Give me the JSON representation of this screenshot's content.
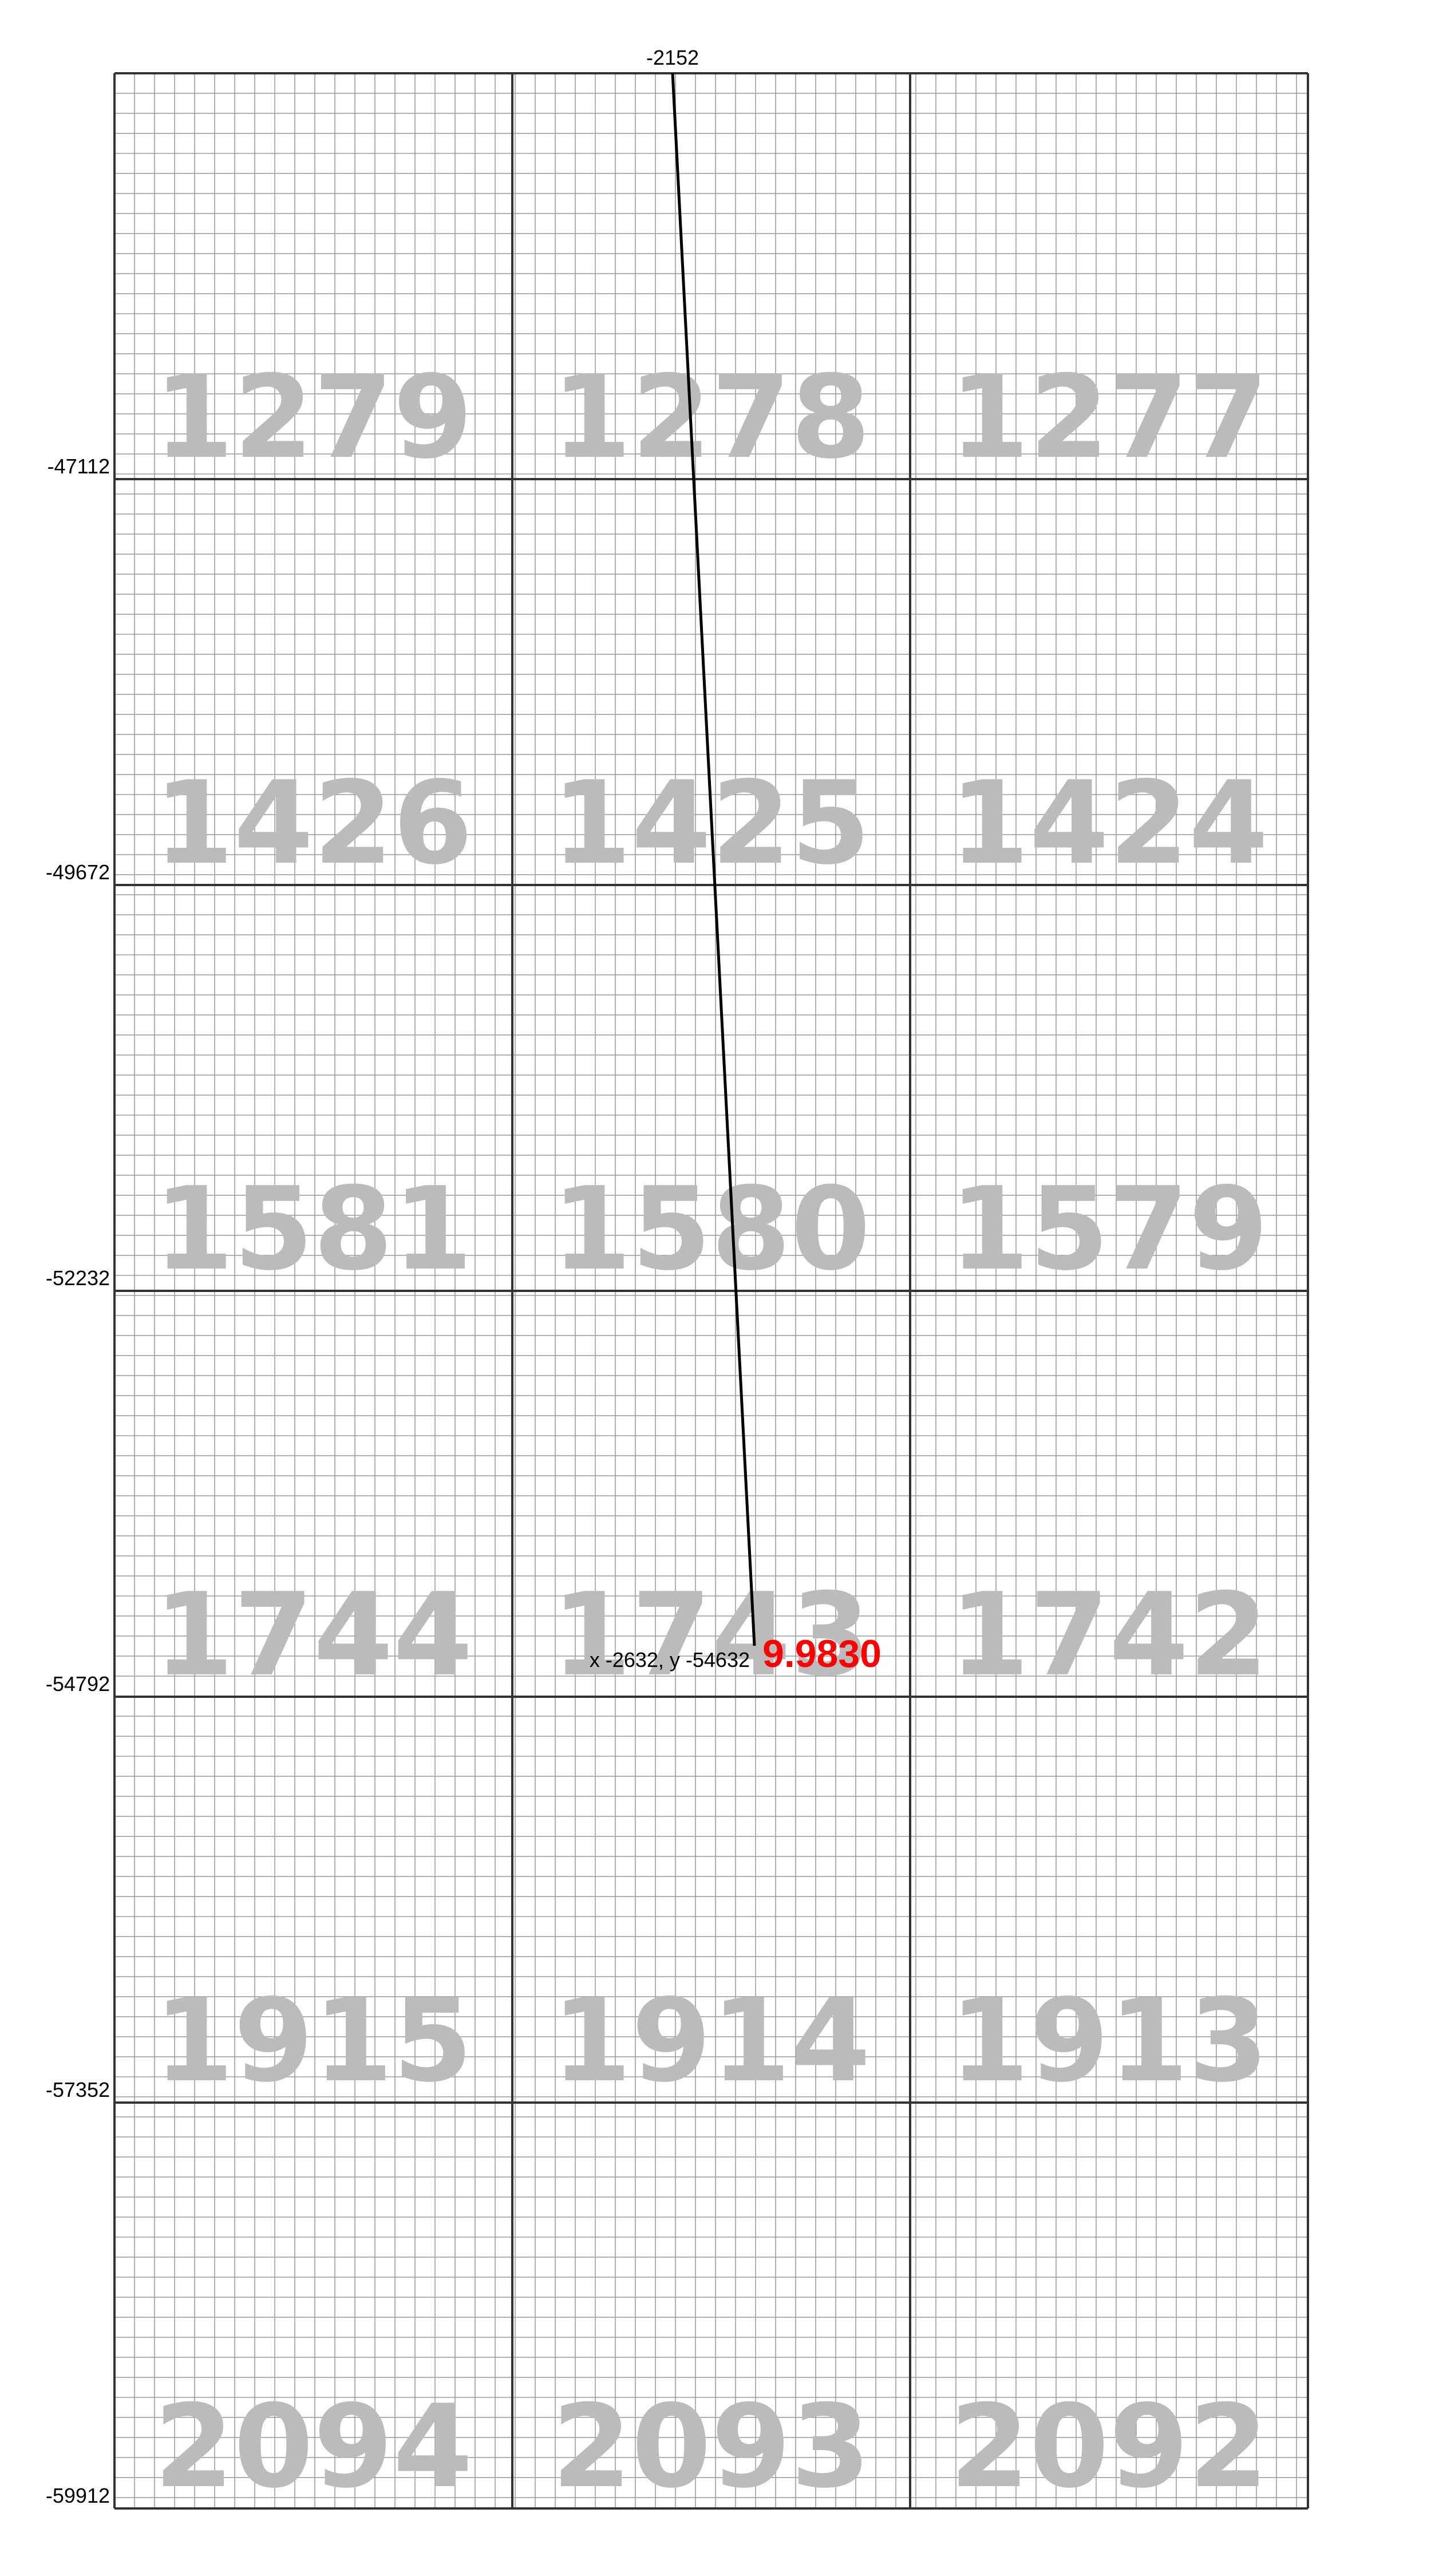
{
  "top_label": "-2152",
  "row_labels": [
    "-47112",
    "-49672",
    "-52232",
    "-54792",
    "-57352",
    "-59912"
  ],
  "tiles": [
    [
      "1279",
      "1278",
      "1277"
    ],
    [
      "1426",
      "1425",
      "1424"
    ],
    [
      "1581",
      "1580",
      "1579"
    ],
    [
      "1744",
      "1743",
      "1742"
    ],
    [
      "1915",
      "1914",
      "1913"
    ],
    [
      "2094",
      "2093",
      "2092"
    ]
  ],
  "position_label": "x -2632, y -54632",
  "distance_label": "9.9830",
  "colors": {
    "background": "#ffffff",
    "fine_grid": "#999999",
    "major_grid": "#333333",
    "tile_number": "#bbbbbb",
    "route_line": "#000000",
    "distance_text": "#ff0000"
  }
}
